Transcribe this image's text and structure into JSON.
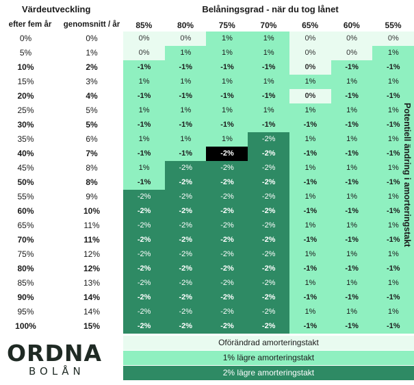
{
  "chart_data": {
    "type": "heatmap",
    "title": "Belåningsgrad - när du tog lånet",
    "row_header": "Värdeutveckling",
    "row_subheaders": [
      "efter fem år",
      "genomsnitt / år"
    ],
    "columns": [
      "85%",
      "80%",
      "75%",
      "70%",
      "65%",
      "60%",
      "55%"
    ],
    "row_labels_5yr": [
      "0%",
      "5%",
      "10%",
      "15%",
      "20%",
      "25%",
      "30%",
      "35%",
      "40%",
      "45%",
      "50%",
      "55%",
      "60%",
      "65%",
      "70%",
      "75%",
      "80%",
      "85%",
      "90%",
      "95%",
      "100%"
    ],
    "row_labels_avg": [
      "0%",
      "1%",
      "2%",
      "3%",
      "4%",
      "5%",
      "5%",
      "6%",
      "7%",
      "8%",
      "8%",
      "9%",
      "10%",
      "11%",
      "11%",
      "12%",
      "12%",
      "13%",
      "14%",
      "14%",
      "15%"
    ],
    "bold_rows": [
      2,
      4,
      6,
      8,
      10,
      12,
      14,
      16,
      18,
      20
    ],
    "values": [
      [
        "0%",
        "0%",
        "1%",
        "1%",
        "0%",
        "0%",
        "0%"
      ],
      [
        "0%",
        "1%",
        "1%",
        "1%",
        "0%",
        "0%",
        "1%"
      ],
      [
        "-1%",
        "-1%",
        "-1%",
        "-1%",
        "0%",
        "-1%",
        "-1%"
      ],
      [
        "1%",
        "1%",
        "1%",
        "1%",
        "1%",
        "1%",
        "1%"
      ],
      [
        "-1%",
        "-1%",
        "-1%",
        "-1%",
        "0%",
        "-1%",
        "-1%"
      ],
      [
        "1%",
        "1%",
        "1%",
        "1%",
        "1%",
        "1%",
        "1%"
      ],
      [
        "-1%",
        "-1%",
        "-1%",
        "-1%",
        "-1%",
        "-1%",
        "-1%"
      ],
      [
        "1%",
        "1%",
        "1%",
        "-2%",
        "1%",
        "1%",
        "1%"
      ],
      [
        "-1%",
        "-1%",
        "-2%",
        "-2%",
        "-1%",
        "-1%",
        "-1%"
      ],
      [
        "1%",
        "-2%",
        "-2%",
        "-2%",
        "1%",
        "1%",
        "1%"
      ],
      [
        "-1%",
        "-2%",
        "-2%",
        "-2%",
        "-1%",
        "-1%",
        "-1%"
      ],
      [
        "-2%",
        "-2%",
        "-2%",
        "-2%",
        "1%",
        "1%",
        "1%"
      ],
      [
        "-2%",
        "-2%",
        "-2%",
        "-2%",
        "-1%",
        "-1%",
        "-1%"
      ],
      [
        "-2%",
        "-2%",
        "-2%",
        "-2%",
        "1%",
        "1%",
        "1%"
      ],
      [
        "-2%",
        "-2%",
        "-2%",
        "-2%",
        "-1%",
        "-1%",
        "-1%"
      ],
      [
        "-2%",
        "-2%",
        "-2%",
        "-2%",
        "1%",
        "1%",
        "1%"
      ],
      [
        "-2%",
        "-2%",
        "-2%",
        "-2%",
        "-1%",
        "-1%",
        "-1%"
      ],
      [
        "-2%",
        "-2%",
        "-2%",
        "-2%",
        "1%",
        "1%",
        "1%"
      ],
      [
        "-2%",
        "-2%",
        "-2%",
        "-2%",
        "-1%",
        "-1%",
        "-1%"
      ],
      [
        "-2%",
        "-2%",
        "-2%",
        "-2%",
        "1%",
        "1%",
        "1%"
      ],
      [
        "-2%",
        "-2%",
        "-2%",
        "-2%",
        "-1%",
        "-1%",
        "-1%"
      ]
    ],
    "levels": [
      [
        0,
        0,
        1,
        1,
        0,
        0,
        0
      ],
      [
        0,
        1,
        1,
        1,
        0,
        0,
        1
      ],
      [
        1,
        1,
        1,
        1,
        0,
        1,
        1
      ],
      [
        1,
        1,
        1,
        1,
        1,
        1,
        1
      ],
      [
        1,
        1,
        1,
        1,
        0,
        1,
        1
      ],
      [
        1,
        1,
        1,
        1,
        1,
        1,
        1
      ],
      [
        1,
        1,
        1,
        1,
        1,
        1,
        1
      ],
      [
        1,
        1,
        1,
        2,
        1,
        1,
        1
      ],
      [
        1,
        1,
        2,
        2,
        1,
        1,
        1
      ],
      [
        1,
        2,
        2,
        2,
        1,
        1,
        1
      ],
      [
        1,
        2,
        2,
        2,
        1,
        1,
        1
      ],
      [
        2,
        2,
        2,
        2,
        1,
        1,
        1
      ],
      [
        2,
        2,
        2,
        2,
        1,
        1,
        1
      ],
      [
        2,
        2,
        2,
        2,
        1,
        1,
        1
      ],
      [
        2,
        2,
        2,
        2,
        1,
        1,
        1
      ],
      [
        2,
        2,
        2,
        2,
        1,
        1,
        1
      ],
      [
        2,
        2,
        2,
        2,
        1,
        1,
        1
      ],
      [
        2,
        2,
        2,
        2,
        1,
        1,
        1
      ],
      [
        2,
        2,
        2,
        2,
        1,
        1,
        1
      ],
      [
        2,
        2,
        2,
        2,
        1,
        1,
        1
      ],
      [
        2,
        2,
        2,
        2,
        1,
        1,
        1
      ]
    ],
    "highlight": {
      "row": 8,
      "col": 2
    },
    "side_label": "Potentiell ändring i amorteringstakt",
    "legend": [
      {
        "label": "Oförändrad amorteringstakt",
        "color": "#e9fbf0"
      },
      {
        "label": "1% lägre amorteringstakt",
        "color": "#8ff0c0"
      },
      {
        "label": "2% lägre amorteringstakt",
        "color": "#2e8a64"
      }
    ],
    "colors": {
      "level0": "#e9fbf0",
      "level1": "#8ff0c0",
      "level2": "#2e8a64",
      "highlight": "#000000"
    }
  },
  "logo": {
    "name": "ORDNA",
    "sub": "BOLÅN"
  }
}
